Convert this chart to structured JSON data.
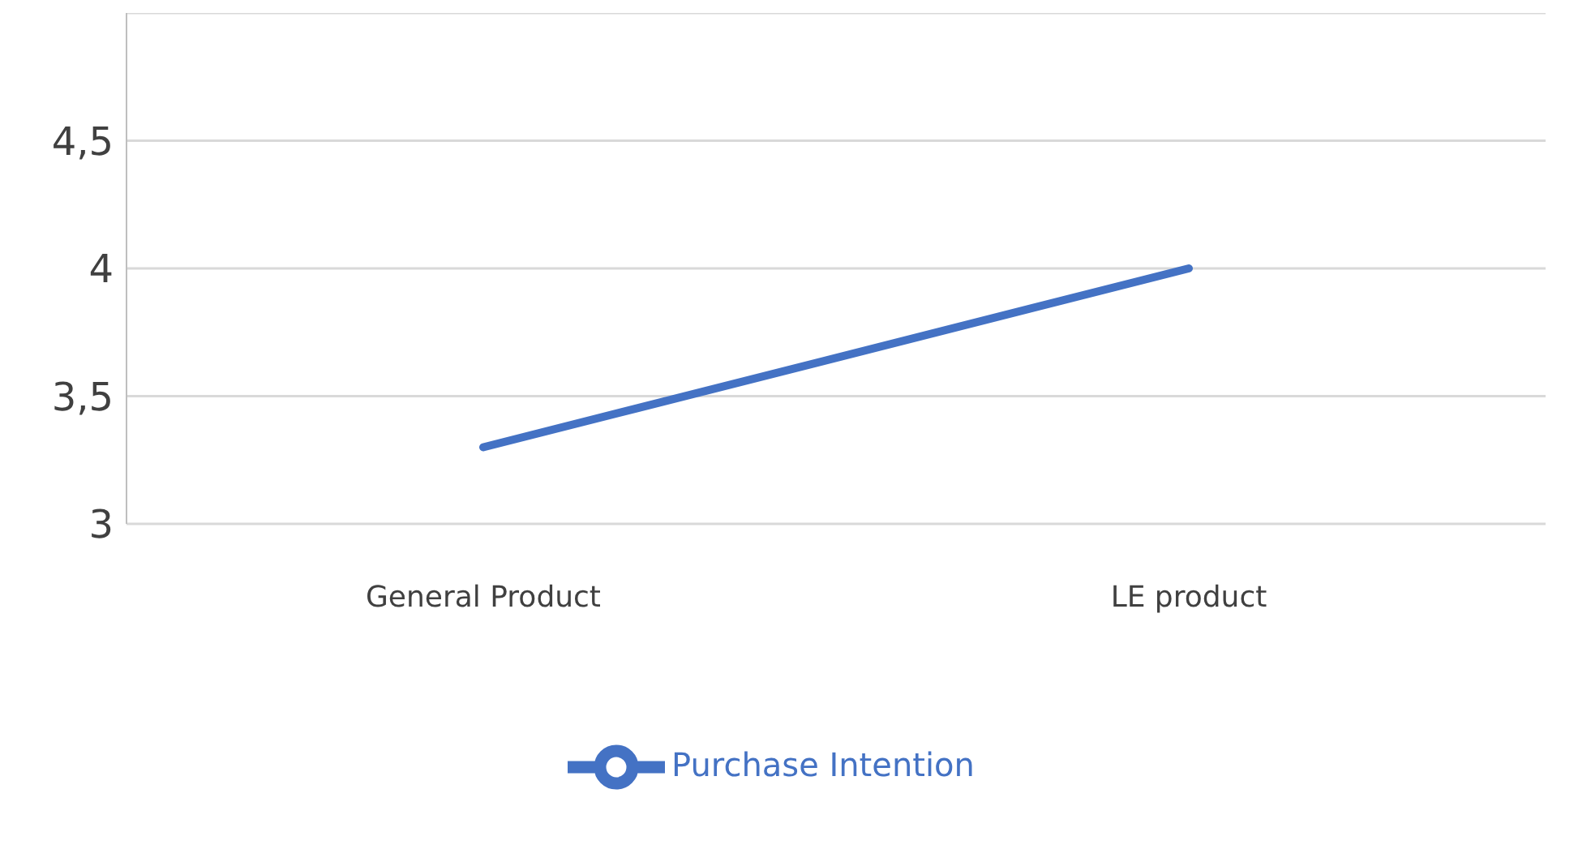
{
  "chart_data": {
    "type": "line",
    "categories": [
      "General Product",
      "LE product"
    ],
    "series": [
      {
        "name": "Purchase Intention",
        "color": "#4472c4",
        "values": [
          3.3,
          4.0
        ]
      }
    ],
    "ylim": [
      3,
      5
    ],
    "yticks": [
      3,
      {
        "value": 3.5,
        "label": "3,5"
      },
      4,
      {
        "value": 4.5,
        "label": "4,5"
      }
    ],
    "grid": "y",
    "legend": "bottom",
    "marker": "none",
    "line_style": "solid"
  }
}
